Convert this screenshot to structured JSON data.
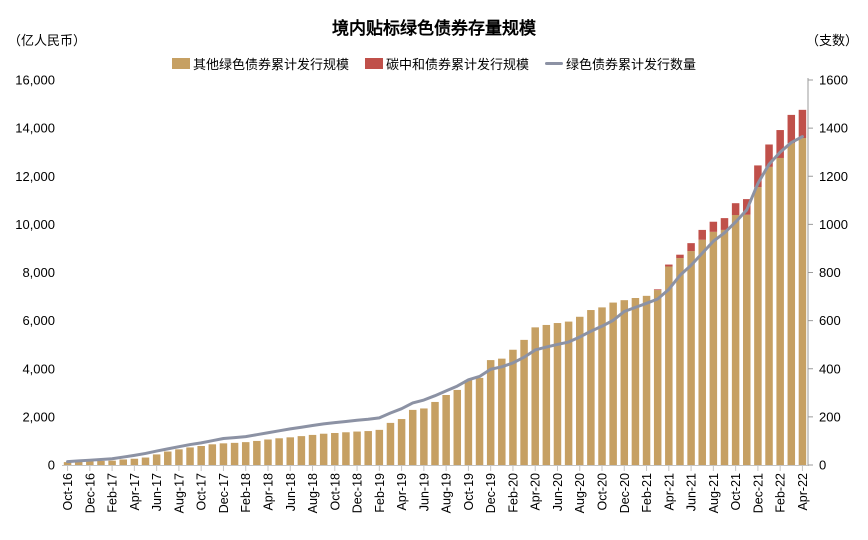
{
  "header": {
    "title": "境内贴标绿色债券存量规模",
    "left_unit": "（亿人民币）",
    "right_unit": "（支数）"
  },
  "legend": [
    {
      "label": "其他绿色债券累计发行规模",
      "type": "box",
      "color": "#C6A063"
    },
    {
      "label": "碳中和债券累计发行规模",
      "type": "box",
      "color": "#C0504A"
    },
    {
      "label": "绿色债券累计发行数量",
      "type": "line",
      "color": "#8C92A4"
    }
  ],
  "colors": {
    "other_bar": "#C6A063",
    "carbon_bar": "#C0504A",
    "count_line": "#8C92A4",
    "axis_line": "#9b9b9b",
    "tick": "#c4c4c4",
    "text": "#000000"
  },
  "chart_data": {
    "type": "combo-bar-line",
    "title": "境内贴标绿色债券存量规模",
    "categories": [
      "Oct-16",
      "Nov-16",
      "Dec-16",
      "Jan-17",
      "Feb-17",
      "Mar-17",
      "Apr-17",
      "May-17",
      "Jun-17",
      "Jul-17",
      "Aug-17",
      "Sep-17",
      "Oct-17",
      "Nov-17",
      "Dec-17",
      "Jan-18",
      "Feb-18",
      "Mar-18",
      "Apr-18",
      "May-18",
      "Jun-18",
      "Jul-18",
      "Aug-18",
      "Sep-18",
      "Oct-18",
      "Nov-18",
      "Dec-18",
      "Jan-19",
      "Feb-19",
      "Mar-19",
      "Apr-19",
      "May-19",
      "Jun-19",
      "Jul-19",
      "Aug-19",
      "Sep-19",
      "Oct-19",
      "Nov-19",
      "Dec-19",
      "Jan-20",
      "Feb-20",
      "Mar-20",
      "Apr-20",
      "May-20",
      "Jun-20",
      "Jul-20",
      "Aug-20",
      "Sep-20",
      "Oct-20",
      "Nov-20",
      "Dec-20",
      "Jan-21",
      "Feb-21",
      "Mar-21",
      "Apr-21",
      "May-21",
      "Jun-21",
      "Jul-21",
      "Aug-21",
      "Sep-21",
      "Oct-21",
      "Nov-21",
      "Dec-21",
      "Jan-22",
      "Feb-22",
      "Mar-22",
      "Apr-22"
    ],
    "x_tick_every": 2,
    "series": [
      {
        "name": "其他绿色债券累计发行规模",
        "type": "bar",
        "stack": "total",
        "axis": "left",
        "color": "#C6A063",
        "values": [
          120,
          140,
          160,
          170,
          180,
          230,
          260,
          310,
          440,
          560,
          650,
          730,
          790,
          860,
          900,
          920,
          950,
          1000,
          1060,
          1110,
          1150,
          1200,
          1250,
          1300,
          1330,
          1360,
          1390,
          1410,
          1460,
          1750,
          1910,
          2290,
          2350,
          2620,
          2910,
          3120,
          3530,
          3620,
          4360,
          4420,
          4790,
          5200,
          5720,
          5820,
          5900,
          5960,
          6160,
          6440,
          6550,
          6750,
          6850,
          6940,
          7030,
          7270,
          8250,
          8600,
          8890,
          9360,
          9690,
          9770,
          10390,
          10400,
          11550,
          12390,
          12760,
          13380,
          13590
        ]
      },
      {
        "name": "碳中和债券累计发行规模",
        "type": "bar",
        "stack": "total",
        "axis": "left",
        "color": "#C0504A",
        "values": [
          0,
          0,
          0,
          0,
          0,
          0,
          0,
          0,
          0,
          0,
          0,
          0,
          0,
          0,
          0,
          0,
          0,
          0,
          0,
          0,
          0,
          0,
          0,
          0,
          0,
          0,
          0,
          0,
          0,
          0,
          0,
          0,
          0,
          0,
          0,
          0,
          0,
          0,
          0,
          0,
          0,
          0,
          0,
          0,
          0,
          0,
          0,
          0,
          0,
          0,
          0,
          0,
          0,
          30,
          80,
          140,
          330,
          410,
          420,
          490,
          490,
          650,
          900,
          930,
          1160,
          1170,
          1170
        ]
      },
      {
        "name": "绿色债券累计发行数量",
        "type": "line",
        "axis": "right",
        "color": "#8C92A4",
        "values": [
          14,
          17,
          20,
          23,
          26,
          33,
          40,
          48,
          58,
          67,
          76,
          85,
          92,
          101,
          110,
          114,
          118,
          126,
          134,
          142,
          150,
          157,
          164,
          171,
          176,
          181,
          186,
          190,
          196,
          216,
          234,
          258,
          270,
          288,
          308,
          328,
          354,
          368,
          398,
          408,
          424,
          448,
          478,
          490,
          501,
          511,
          532,
          556,
          577,
          601,
          638,
          655,
          672,
          690,
          730,
          788,
          830,
          880,
          930,
          965,
          1010,
          1060,
          1170,
          1250,
          1300,
          1340,
          1365
        ]
      }
    ],
    "y_left": {
      "min": 0,
      "max": 16000,
      "step": 2000,
      "tick_labels": [
        "0",
        "2,000",
        "4,000",
        "6,000",
        "8,000",
        "10,000",
        "12,000",
        "14,000",
        "16,000"
      ]
    },
    "y_right": {
      "min": 0,
      "max": 1600,
      "step": 200,
      "tick_labels": [
        "0",
        "200",
        "400",
        "600",
        "800",
        "1000",
        "1200",
        "1400",
        "1600"
      ]
    },
    "grid": false,
    "legend_position": "top"
  }
}
